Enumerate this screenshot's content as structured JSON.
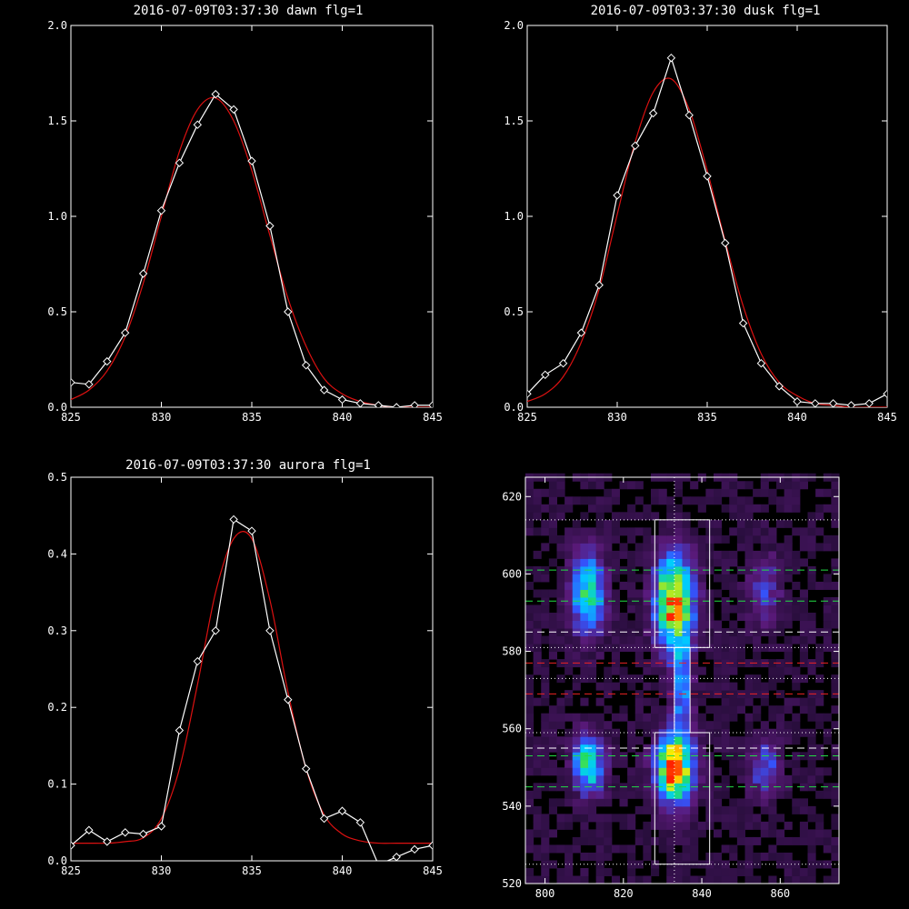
{
  "chart_data": [
    {
      "type": "line",
      "title": "2016-07-09T03:37:30 dawn flg=1",
      "xlim": [
        825,
        845
      ],
      "ylim": [
        0,
        2.0
      ],
      "xticks": [
        825,
        830,
        835,
        840,
        845
      ],
      "xtick_labels": [
        "825",
        "830",
        "835",
        "840",
        "845"
      ],
      "yticks": [
        0,
        0.5,
        1.0,
        1.5,
        2.0
      ],
      "ytick_labels": [
        "0.0",
        "0.5",
        "1.0",
        "1.5",
        "2.0"
      ],
      "series": [
        {
          "color": "#ffffff",
          "marker": "diamond",
          "x": [
            825,
            826,
            827,
            828,
            829,
            830,
            831,
            832,
            833,
            834,
            835,
            836,
            837,
            838,
            839,
            840,
            841,
            842,
            843,
            844,
            845
          ],
          "y": [
            0.13,
            0.12,
            0.24,
            0.39,
            0.7,
            1.03,
            1.28,
            1.48,
            1.64,
            1.56,
            1.29,
            0.95,
            0.5,
            0.22,
            0.09,
            0.04,
            0.02,
            0.01,
            0.0,
            0.01,
            0.01
          ]
        },
        {
          "color": "#dd1111",
          "style": "fit",
          "x": [
            825,
            826,
            827,
            828,
            829,
            830,
            831,
            832,
            833,
            834,
            835,
            836,
            837,
            838,
            839,
            840,
            841,
            842,
            843,
            844,
            845
          ],
          "y": [
            0.04,
            0.09,
            0.19,
            0.37,
            0.65,
            1.0,
            1.34,
            1.56,
            1.62,
            1.5,
            1.24,
            0.9,
            0.57,
            0.32,
            0.15,
            0.07,
            0.03,
            0.01,
            0.0,
            0.0,
            0.0
          ]
        }
      ]
    },
    {
      "type": "line",
      "title": "2016-07-09T03:37:30 dusk flg=1",
      "xlim": [
        825,
        845
      ],
      "ylim": [
        0,
        2.0
      ],
      "xticks": [
        825,
        830,
        835,
        840,
        845
      ],
      "xtick_labels": [
        "825",
        "830",
        "835",
        "840",
        "845"
      ],
      "yticks": [
        0,
        0.5,
        1.0,
        1.5,
        2.0
      ],
      "ytick_labels": [
        "0.0",
        "0.5",
        "1.0",
        "1.5",
        "2.0"
      ],
      "series": [
        {
          "color": "#ffffff",
          "marker": "diamond",
          "x": [
            825,
            826,
            827,
            828,
            829,
            830,
            831,
            832,
            833,
            834,
            835,
            836,
            837,
            838,
            839,
            840,
            841,
            842,
            843,
            844,
            845
          ],
          "y": [
            0.07,
            0.17,
            0.23,
            0.39,
            0.64,
            1.11,
            1.37,
            1.54,
            1.83,
            1.53,
            1.21,
            0.86,
            0.44,
            0.23,
            0.11,
            0.03,
            0.02,
            0.02,
            0.01,
            0.02,
            0.07
          ]
        },
        {
          "color": "#dd1111",
          "style": "fit",
          "x": [
            825,
            826,
            827,
            828,
            829,
            830,
            831,
            832,
            833,
            834,
            835,
            836,
            837,
            838,
            839,
            840,
            841,
            842,
            843,
            844,
            845
          ],
          "y": [
            0.03,
            0.07,
            0.16,
            0.34,
            0.62,
            1.01,
            1.39,
            1.65,
            1.72,
            1.56,
            1.24,
            0.87,
            0.53,
            0.28,
            0.13,
            0.06,
            0.02,
            0.01,
            0.0,
            0.0,
            0.0
          ]
        }
      ]
    },
    {
      "type": "line",
      "title": "2016-07-09T03:37:30 aurora flg=1",
      "xlim": [
        825,
        845
      ],
      "ylim": [
        0,
        0.5
      ],
      "xticks": [
        825,
        830,
        835,
        840,
        845
      ],
      "xtick_labels": [
        "825",
        "830",
        "835",
        "840",
        "845"
      ],
      "yticks": [
        0,
        0.1,
        0.2,
        0.3,
        0.4,
        0.5
      ],
      "ytick_labels": [
        "0.0",
        "0.1",
        "0.2",
        "0.3",
        "0.4",
        "0.5"
      ],
      "series": [
        {
          "color": "#ffffff",
          "marker": "diamond",
          "x": [
            825,
            826,
            827,
            828,
            829,
            830,
            831,
            832,
            833,
            834,
            835,
            836,
            837,
            838,
            839,
            840,
            841,
            842,
            843,
            844,
            845
          ],
          "y": [
            0.02,
            0.04,
            0.025,
            0.037,
            0.035,
            0.045,
            0.17,
            0.26,
            0.3,
            0.445,
            0.43,
            0.3,
            0.21,
            0.12,
            0.055,
            0.065,
            0.05,
            -0.005,
            0.005,
            0.015,
            0.02
          ]
        },
        {
          "color": "#dd1111",
          "style": "fit",
          "x": [
            825,
            826,
            827,
            828,
            829,
            830,
            831,
            832,
            833,
            834,
            835,
            836,
            837,
            838,
            839,
            840,
            841,
            842,
            843,
            844,
            845
          ],
          "y": [
            0.023,
            0.023,
            0.023,
            0.025,
            0.03,
            0.055,
            0.12,
            0.23,
            0.35,
            0.42,
            0.42,
            0.34,
            0.22,
            0.12,
            0.06,
            0.035,
            0.026,
            0.023,
            0.023,
            0.023,
            0.023
          ]
        }
      ]
    },
    {
      "type": "heatmap",
      "title": "",
      "xlim": [
        795,
        875
      ],
      "ylim": [
        520,
        625
      ],
      "xticks": [
        800,
        820,
        840,
        860
      ],
      "xtick_labels": [
        "800",
        "820",
        "840",
        "860"
      ],
      "yticks": [
        520,
        540,
        560,
        580,
        600,
        620
      ],
      "ytick_labels": [
        "520",
        "540",
        "560",
        "580",
        "600",
        "620"
      ],
      "colorscale": [
        "#1a0a2a",
        "#5a1a7a",
        "#3355ff",
        "#00ccff",
        "#22dd66",
        "#ffee00",
        "#ff2200"
      ],
      "cell_size": [
        2,
        2
      ],
      "blobs": [
        {
          "x": 811,
          "y": 595,
          "sx": 2.8,
          "sy": 7,
          "peak": 0.55
        },
        {
          "x": 811,
          "y": 551,
          "sx": 2.6,
          "sy": 5,
          "peak": 0.6
        },
        {
          "x": 833,
          "y": 593,
          "sx": 3.2,
          "sy": 8,
          "peak": 0.95
        },
        {
          "x": 833,
          "y": 550,
          "sx": 3.2,
          "sy": 6,
          "peak": 0.95
        },
        {
          "x": 835,
          "y": 570,
          "sx": 1.6,
          "sy": 9,
          "peak": 0.35
        },
        {
          "x": 856,
          "y": 596,
          "sx": 2.8,
          "sy": 6,
          "peak": 0.22
        },
        {
          "x": 856,
          "y": 550,
          "sx": 2.6,
          "sy": 5,
          "peak": 0.28
        }
      ],
      "rectangles": [
        {
          "x0": 828,
          "x1": 842,
          "y0": 581,
          "y1": 614
        },
        {
          "x0": 833,
          "x1": 837,
          "y0": 559,
          "y1": 581
        },
        {
          "x0": 828,
          "x1": 842,
          "y0": 525,
          "y1": 559
        }
      ],
      "vline": {
        "x": 833,
        "color": "#ffffff",
        "style": "dotted"
      },
      "hlines": [
        {
          "y": 614,
          "color": "#ffffff",
          "style": "dotted"
        },
        {
          "y": 601,
          "color": "#22dd44",
          "style": "dashed"
        },
        {
          "y": 593,
          "color": "#22dd44",
          "style": "dashed"
        },
        {
          "y": 585,
          "color": "#ffffff",
          "style": "dashed"
        },
        {
          "y": 581,
          "color": "#ffffff",
          "style": "dotted"
        },
        {
          "y": 577,
          "color": "#ee2222",
          "style": "dashed"
        },
        {
          "y": 573,
          "color": "#ffffff",
          "style": "dotted"
        },
        {
          "y": 569,
          "color": "#ee2222",
          "style": "dashed"
        },
        {
          "y": 559,
          "color": "#ffffff",
          "style": "dotted"
        },
        {
          "y": 555,
          "color": "#ffffff",
          "style": "dashed"
        },
        {
          "y": 553,
          "color": "#22dd44",
          "style": "dashed"
        },
        {
          "y": 545,
          "color": "#22dd44",
          "style": "dashed"
        },
        {
          "y": 525,
          "color": "#ffffff",
          "style": "dotted"
        }
      ]
    }
  ]
}
